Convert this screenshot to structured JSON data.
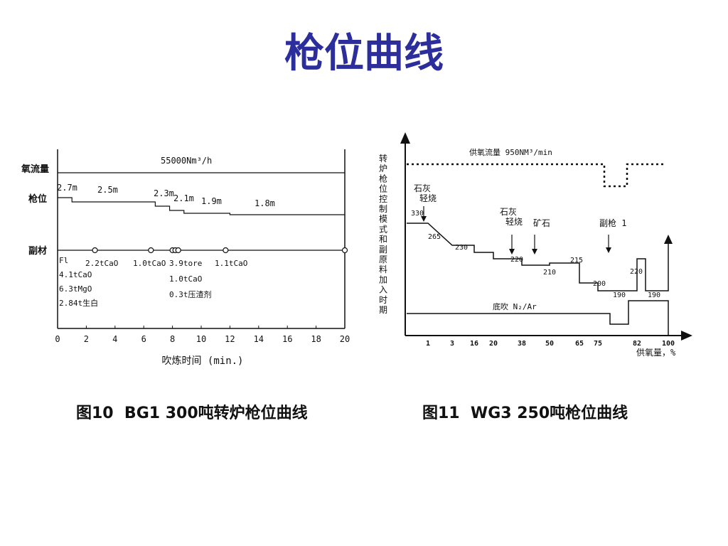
{
  "page": {
    "title": "枪位曲线"
  },
  "captions": {
    "left": "图10  BG1 300吨转炉枪位曲线",
    "right": "图11  WG3 250吨枪位曲线"
  },
  "chart_data": [
    {
      "type": "line",
      "xlabel": "吹炼时间 (min.)",
      "xlim": [
        0,
        20
      ],
      "xticks": [
        0,
        2,
        4,
        6,
        8,
        10,
        12,
        14,
        16,
        18,
        20
      ],
      "row_labels": {
        "oxygen": "氧流量",
        "lance": "枪位",
        "additions": "副材"
      },
      "oxygen_flow_label": "55000Nm³/h",
      "lance_height": {
        "steps": [
          {
            "x": [
              0,
              1
            ],
            "label": "2.7m"
          },
          {
            "x": [
              1,
              6.8
            ],
            "label": "2.5m"
          },
          {
            "x": [
              6.8,
              7.8
            ],
            "label": "2.3m"
          },
          {
            "x": [
              7.8,
              8.8
            ],
            "label": "2.1m"
          },
          {
            "x": [
              8.8,
              12
            ],
            "label": "1.9m"
          },
          {
            "x": [
              12,
              20
            ],
            "label": "1.8m"
          }
        ]
      },
      "additions": [
        {
          "x": 0,
          "marker": false,
          "lines": [
            "Fl",
            "4.1tCaO",
            "6.3tMgO",
            "2.84t生白"
          ]
        },
        {
          "x": 2.6,
          "marker": true,
          "lines": [
            "2.2tCaO"
          ]
        },
        {
          "x": 6.5,
          "marker": true,
          "lines": [
            "1.0tCaO"
          ]
        },
        {
          "x": 8.0,
          "marker": true,
          "lines": []
        },
        {
          "x": 8.2,
          "marker": true,
          "lines": []
        },
        {
          "x": 8.4,
          "marker": true,
          "lines": [
            "3.9tore",
            "1.0tCaO",
            "0.3t压渣剂"
          ]
        },
        {
          "x": 11.7,
          "marker": true,
          "lines": [
            "1.1tCaO"
          ]
        },
        {
          "x": 20,
          "marker": true,
          "lines": []
        }
      ]
    },
    {
      "type": "line",
      "ylabel": "转炉枪位控制模式和副原料加入时期",
      "xlabel": "供氧量，%",
      "xticks": [
        "1",
        "3",
        "16",
        "20",
        "38",
        "50",
        "65",
        "75",
        "82",
        "100"
      ],
      "oxygen_supply": {
        "label": "供氧流量 950NM³/min",
        "dip_x": [
          "75",
          "82"
        ]
      },
      "lance_steps": [
        {
          "value": "330",
          "x": [
            "0",
            "1"
          ]
        },
        {
          "value": "265",
          "x": [
            "3",
            "16"
          ]
        },
        {
          "value": "230",
          "x": [
            "16",
            "20"
          ]
        },
        {
          "value": "220",
          "x": [
            "20",
            "38"
          ]
        },
        {
          "value": "210",
          "x": [
            "38",
            "50"
          ]
        },
        {
          "value": "215",
          "x": [
            "50",
            "65"
          ]
        },
        {
          "value": "200",
          "x": [
            "65",
            "75"
          ]
        },
        {
          "value": "190",
          "x": [
            "75",
            "82"
          ]
        },
        {
          "value": "220",
          "x": [
            "82",
            "85"
          ]
        },
        {
          "value": "190",
          "x": [
            "85",
            "100"
          ]
        }
      ],
      "annotations": [
        {
          "lines": [
            "石灰",
            "轻烧"
          ]
        },
        {
          "lines": [
            "石灰",
            "轻烧"
          ]
        },
        {
          "lines": [
            "矿石"
          ]
        },
        {
          "lines": [
            "副枪 1"
          ]
        }
      ],
      "bottom_blowing": {
        "label": "底吹 N₂/Ar"
      }
    }
  ]
}
